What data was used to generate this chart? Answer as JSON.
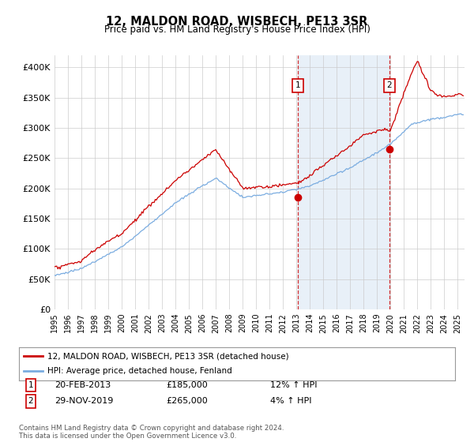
{
  "title": "12, MALDON ROAD, WISBECH, PE13 3SR",
  "subtitle": "Price paid vs. HM Land Registry's House Price Index (HPI)",
  "ylabel_ticks": [
    "£0",
    "£50K",
    "£100K",
    "£150K",
    "£200K",
    "£250K",
    "£300K",
    "£350K",
    "£400K"
  ],
  "ytick_vals": [
    0,
    50000,
    100000,
    150000,
    200000,
    250000,
    300000,
    350000,
    400000
  ],
  "ylim": [
    0,
    420000
  ],
  "xlim_start": 1995.0,
  "xlim_end": 2025.5,
  "purchase1_x": 2013.12,
  "purchase1_price": 185000,
  "purchase2_x": 2019.92,
  "purchase2_price": 265000,
  "purchase1_date_str": "20-FEB-2013",
  "purchase2_date_str": "29-NOV-2019",
  "purchase1_hpi": "12% ↑ HPI",
  "purchase2_hpi": "4% ↑ HPI",
  "red_color": "#cc0000",
  "blue_color": "#7aace0",
  "highlight_color": "#e8f0f8",
  "legend_label_red": "12, MALDON ROAD, WISBECH, PE13 3SR (detached house)",
  "legend_label_blue": "HPI: Average price, detached house, Fenland",
  "footer": "Contains HM Land Registry data © Crown copyright and database right 2024.\nThis data is licensed under the Open Government Licence v3.0.",
  "xtick_years": [
    1995,
    1996,
    1997,
    1998,
    1999,
    2000,
    2001,
    2002,
    2003,
    2004,
    2005,
    2006,
    2007,
    2008,
    2009,
    2010,
    2011,
    2012,
    2013,
    2014,
    2015,
    2016,
    2017,
    2018,
    2019,
    2020,
    2021,
    2022,
    2023,
    2024,
    2025
  ]
}
